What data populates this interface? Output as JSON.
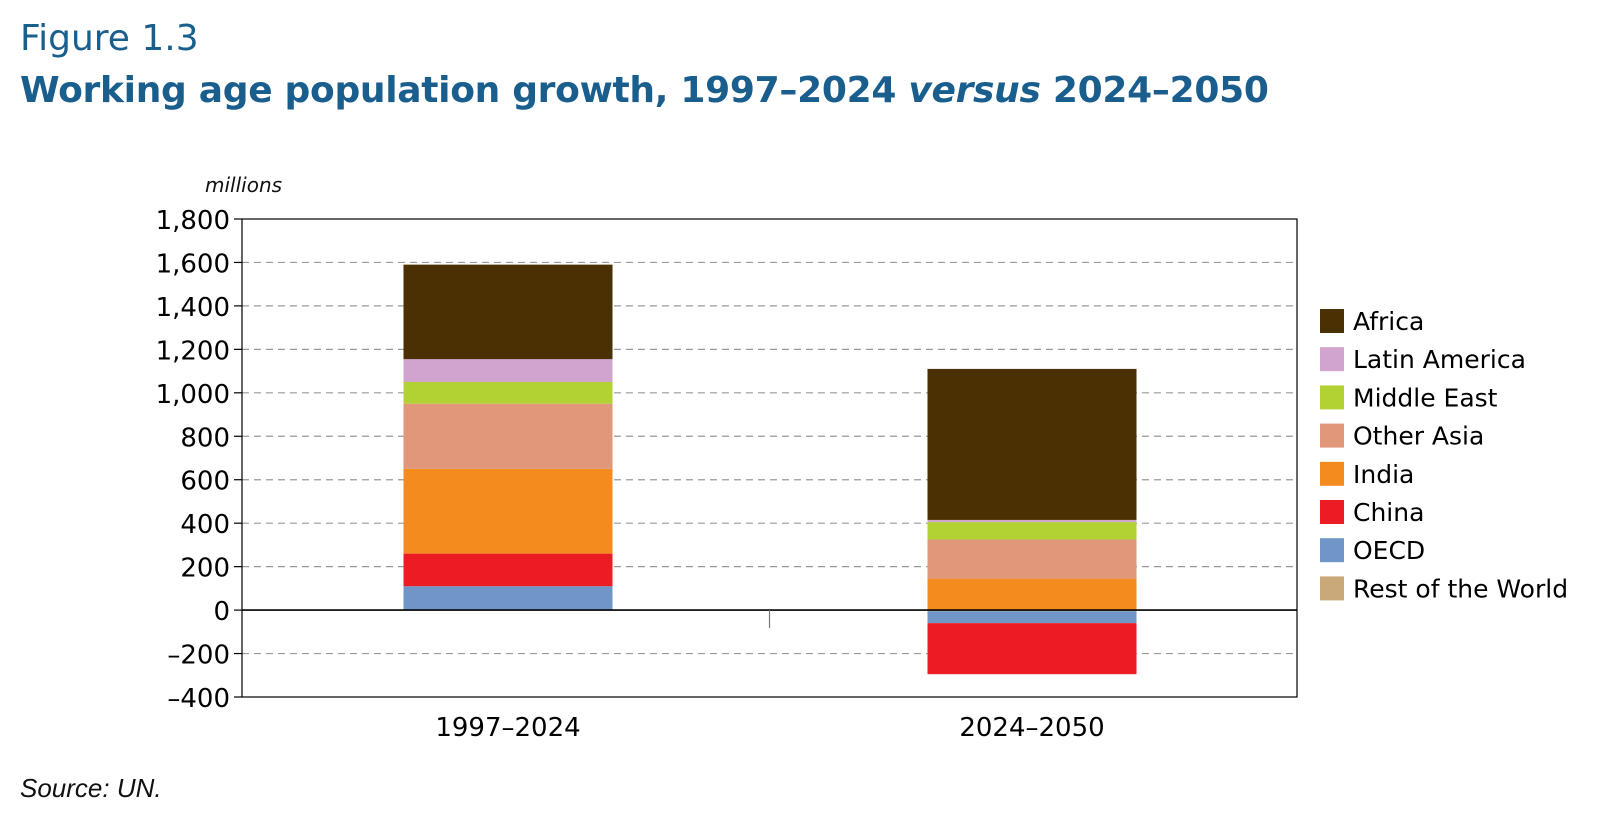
{
  "figure": {
    "label": "Figure 1.3",
    "title_part1": "Working age population growth, 1997–2024 ",
    "title_italic": "versus",
    "title_part2": " 2024–2050",
    "source": "Source: UN."
  },
  "chart_data": {
    "type": "bar",
    "stacked": true,
    "unit_label": "millions",
    "categories": [
      "1997–2024",
      "2024–2050"
    ],
    "y_ticks": [
      "1,800",
      "1,600",
      "1,400",
      "1,200",
      "1,000",
      "800",
      "600",
      "400",
      "200",
      "0",
      "–200",
      "–400"
    ],
    "y_tick_values": [
      1800,
      1600,
      1400,
      1200,
      1000,
      800,
      600,
      400,
      200,
      0,
      -200,
      -400
    ],
    "ylim": [
      -400,
      1800
    ],
    "grid": true,
    "legend_position": "right",
    "series": [
      {
        "name": "Rest of the World",
        "color": "#c9a97a",
        "values": [
          0,
          -5
        ]
      },
      {
        "name": "OECD",
        "color": "#6f96c7",
        "values": [
          110,
          -55
        ]
      },
      {
        "name": "China",
        "color": "#ec1c24",
        "values": [
          150,
          -235
        ]
      },
      {
        "name": "India",
        "color": "#f48b1f",
        "values": [
          390,
          145
        ]
      },
      {
        "name": "Other Asia",
        "color": "#e0977a",
        "values": [
          300,
          180
        ]
      },
      {
        "name": "Middle East",
        "color": "#b2d234",
        "values": [
          100,
          80
        ]
      },
      {
        "name": "Latin America",
        "color": "#d0a4ce",
        "values": [
          105,
          10
        ]
      },
      {
        "name": "Africa",
        "color": "#4b3003",
        "values": [
          435,
          695
        ]
      }
    ],
    "legend_order": [
      "Africa",
      "Latin America",
      "Middle East",
      "Other Asia",
      "India",
      "China",
      "OECD",
      "Rest of the World"
    ]
  }
}
